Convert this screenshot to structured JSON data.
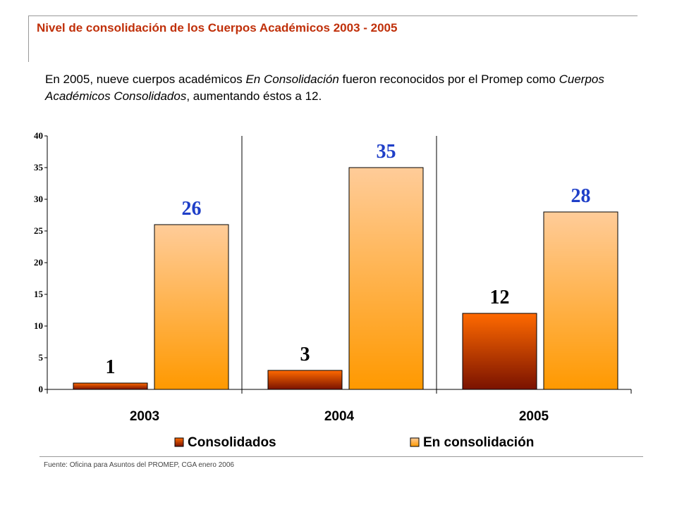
{
  "header": {
    "title": "Nivel de consolidación de los Cuerpos Académicos 2003 - 2005"
  },
  "intro": {
    "part1": "En 2005, nueve cuerpos académicos ",
    "em1": "En Consolidación",
    "part2": " fueron reconocidos por el Promep como ",
    "em2": "Cuerpos Académicos Consolidados",
    "part3": ", aumentando éstos a 12."
  },
  "chart_data": {
    "type": "bar",
    "categories": [
      "2003",
      "2004",
      "2005"
    ],
    "series": [
      {
        "name": "Consolidados",
        "values": [
          1,
          3,
          12
        ],
        "color_top": "#ff6a00",
        "color_bottom": "#7a1200",
        "label_color": "#000000"
      },
      {
        "name": "En consolidación",
        "values": [
          26,
          35,
          28
        ],
        "color_top": "#ffcc99",
        "color_bottom": "#ff9900",
        "label_color": "#1f3fc8"
      }
    ],
    "ylim": [
      0,
      40
    ],
    "yticks": [
      "0",
      "5",
      "10",
      "15",
      "20",
      "25",
      "30",
      "35",
      "40"
    ],
    "ytick_step": 5,
    "grid": false,
    "legend": "bottom"
  },
  "footer": {
    "source": "Fuente: Oficina para Asuntos del PROMEP,  CGA enero 2006"
  }
}
